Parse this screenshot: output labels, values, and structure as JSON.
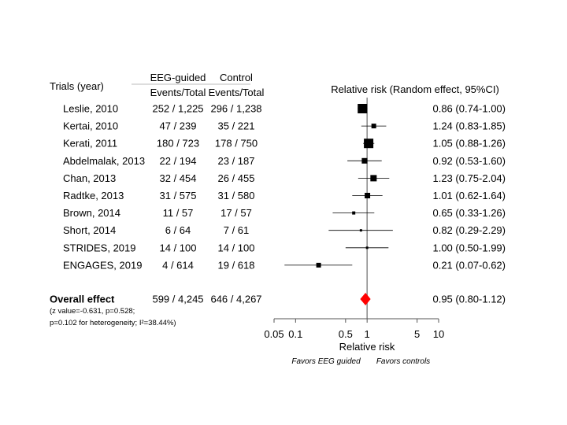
{
  "chart_data": {
    "type": "forest",
    "headers": {
      "trials": "Trials (year)",
      "group1": "EEG-guided",
      "group2": "Control",
      "events_total": "Events/Total",
      "effect": "Relative risk (Random effect, 95%CI)"
    },
    "studies": [
      {
        "name": "Leslie, 2010",
        "g1": "252 / 1,225",
        "g2": "296 / 1,238",
        "rr": 0.86,
        "lo": 0.74,
        "hi": 1.0,
        "label": "0.86 (0.74-1.00)"
      },
      {
        "name": "Kertai, 2010",
        "g1": "47 / 239",
        "g2": "35 / 221",
        "rr": 1.24,
        "lo": 0.83,
        "hi": 1.85,
        "label": "1.24 (0.83-1.85)"
      },
      {
        "name": "Kerati, 2011",
        "g1": "180 / 723",
        "g2": "178 / 750",
        "rr": 1.05,
        "lo": 0.88,
        "hi": 1.26,
        "label": "1.05 (0.88-1.26)"
      },
      {
        "name": "Abdelmalak, 2013",
        "g1": "22 / 194",
        "g2": "23 / 187",
        "rr": 0.92,
        "lo": 0.53,
        "hi": 1.6,
        "label": "0.92 (0.53-1.60)"
      },
      {
        "name": "Chan, 2013",
        "g1": "32 / 454",
        "g2": "26 / 455",
        "rr": 1.23,
        "lo": 0.75,
        "hi": 2.04,
        "label": "1.23 (0.75-2.04)"
      },
      {
        "name": "Radtke, 2013",
        "g1": "31 / 575",
        "g2": "31 / 580",
        "rr": 1.01,
        "lo": 0.62,
        "hi": 1.64,
        "label": "1.01 (0.62-1.64)"
      },
      {
        "name": "Brown, 2014",
        "g1": "11 / 57",
        "g2": "17 / 57",
        "rr": 0.65,
        "lo": 0.33,
        "hi": 1.26,
        "label": "0.65 (0.33-1.26)"
      },
      {
        "name": "Short, 2014",
        "g1": "6 / 64",
        "g2": "7 / 61",
        "rr": 0.82,
        "lo": 0.29,
        "hi": 2.29,
        "label": "0.82 (0.29-2.29)"
      },
      {
        "name": "STRIDES, 2019",
        "g1": "14 / 100",
        "g2": "14 / 100",
        "rr": 1.0,
        "lo": 0.5,
        "hi": 1.99,
        "label": "1.00 (0.50-1.99)"
      },
      {
        "name": "ENGAGES, 2019",
        "g1": "4 / 614",
        "g2": "19 / 618",
        "rr": 0.21,
        "lo": 0.07,
        "hi": 0.62,
        "label": "0.21 (0.07-0.62)"
      }
    ],
    "overall": {
      "name": "Overall effect",
      "g1": "599 / 4,245",
      "g2": "646 / 4,267",
      "rr": 0.95,
      "lo": 0.8,
      "hi": 1.12,
      "label": "0.95 (0.80-1.12)"
    },
    "stats_line1": "(z value=-0.631, p=0.528;",
    "stats_line2": "p=0.102 for heterogeneity; I²=38.44%)",
    "x_axis": {
      "label": "Relative risk",
      "scale": "log",
      "range": [
        0.05,
        10
      ],
      "ticks": [
        0.05,
        0.1,
        0.5,
        1,
        5,
        10
      ],
      "tick_labels": [
        "0.05",
        "0.1",
        "0.5",
        "1",
        "5",
        "10"
      ],
      "favors_left": "Favors EEG guided",
      "favors_right": "Favors controls"
    },
    "colors": {
      "marker": "#000000",
      "overall": "#ff0000",
      "line": "#808080"
    }
  }
}
